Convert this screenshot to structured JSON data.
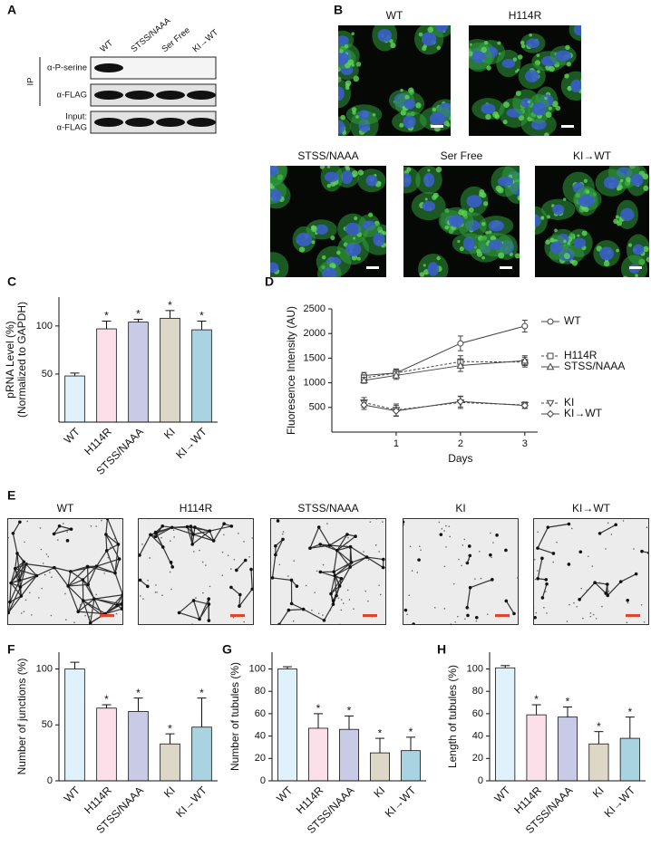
{
  "panel_labels": [
    "A",
    "B",
    "C",
    "D",
    "E",
    "F",
    "G",
    "H"
  ],
  "blot": {
    "lanes": [
      "WT",
      "STSS/NAAA",
      "Ser Free",
      "KI→WT"
    ],
    "group_label": "IP",
    "rows": [
      [
        "α-P-serine"
      ],
      [
        "α-FLAG"
      ],
      [
        "Input:",
        "α-FLAG"
      ]
    ]
  },
  "fluorescence_images": {
    "titles": [
      "WT",
      "H114R",
      "STSS/NAAA",
      "Ser Free",
      "KI→WT"
    ]
  },
  "tube_images": {
    "titles": [
      "WT",
      "H114R",
      "STSS/NAAA",
      "KI",
      "KI→WT"
    ]
  },
  "chart_data": [
    {
      "type": "bar",
      "ylabel": [
        "pRNA Level (%)",
        "(Normalized to GAPDH)"
      ],
      "categories": [
        "WT",
        "H114R",
        "STSS/NAAA",
        "KI",
        "KI→WT"
      ],
      "values": [
        48,
        97,
        104,
        108,
        96
      ],
      "errors": [
        3,
        8,
        3,
        8,
        9
      ],
      "significance": [
        null,
        "*",
        "*",
        "*",
        "*"
      ],
      "colors": [
        "#dff2fb",
        "#fbe0ea",
        "#c9cbe6",
        "#ddd7c8",
        "#a9d3e0"
      ],
      "ylim": [
        0,
        130
      ],
      "yticks": [
        50,
        100
      ]
    },
    {
      "type": "line",
      "ylabel": [
        "Fluoresence Intensity (AU)"
      ],
      "xlabel": "Days",
      "x": [
        0.5,
        1,
        2,
        3
      ],
      "xlim": [
        0,
        3.2
      ],
      "xticks": [
        1,
        2,
        3
      ],
      "ylim": [
        0,
        2500
      ],
      "yticks": [
        500,
        1000,
        1500,
        2000,
        2500
      ],
      "series": [
        {
          "name": "WT",
          "color": "#444444",
          "marker": "circle",
          "dashed": false,
          "values": [
            1150,
            1200,
            1800,
            2150
          ],
          "errors": [
            60,
            80,
            150,
            120
          ]
        },
        {
          "name": "H114R",
          "color": "#444444",
          "marker": "square",
          "dashed": true,
          "values": [
            1100,
            1200,
            1430,
            1420
          ],
          "errors": [
            60,
            80,
            120,
            100
          ]
        },
        {
          "name": "STSS/NAAA",
          "color": "#444444",
          "marker": "triangle-up",
          "dashed": false,
          "values": [
            1050,
            1150,
            1350,
            1450
          ],
          "errors": [
            60,
            80,
            120,
            100
          ]
        },
        {
          "name": "KI",
          "color": "#444444",
          "marker": "triangle-down",
          "dashed": true,
          "values": [
            600,
            450,
            600,
            550
          ],
          "errors": [
            100,
            120,
            120,
            60
          ]
        },
        {
          "name": "KI→WT",
          "color": "#444444",
          "marker": "diamond",
          "dashed": false,
          "values": [
            550,
            430,
            620,
            540
          ],
          "errors": [
            90,
            110,
            110,
            60
          ]
        }
      ]
    },
    {
      "type": "bar",
      "ylabel": [
        "Number of junctions (%)"
      ],
      "categories": [
        "WT",
        "H114R",
        "STSS/NAAA",
        "KI",
        "KI→WT"
      ],
      "values": [
        100,
        65,
        62,
        33,
        48
      ],
      "errors": [
        6,
        3,
        12,
        9,
        26
      ],
      "significance": [
        null,
        "*",
        "*",
        "*",
        "*"
      ],
      "colors": [
        "#dff2fb",
        "#fbe0ea",
        "#c9cbe6",
        "#ddd7c8",
        "#a9d3e0"
      ],
      "ylim": [
        0,
        115
      ],
      "yticks": [
        0,
        50,
        100
      ]
    },
    {
      "type": "bar",
      "ylabel": [
        "Number of tubules (%)"
      ],
      "categories": [
        "WT",
        "H114R",
        "STSS/NAAA",
        "KI",
        "KI→WT"
      ],
      "values": [
        100,
        47,
        46,
        25,
        27
      ],
      "errors": [
        2,
        13,
        12,
        13,
        12
      ],
      "significance": [
        null,
        "*",
        "*",
        "*",
        "*"
      ],
      "colors": [
        "#dff2fb",
        "#fbe0ea",
        "#c9cbe6",
        "#ddd7c8",
        "#a9d3e0"
      ],
      "ylim": [
        0,
        115
      ],
      "yticks": [
        0,
        20,
        40,
        60,
        80,
        100
      ]
    },
    {
      "type": "bar",
      "ylabel": [
        "Length of tubules (%)"
      ],
      "categories": [
        "WT",
        "H114R",
        "STSS/NAAA",
        "KI",
        "KI→WT"
      ],
      "values": [
        101,
        59,
        57,
        33,
        38
      ],
      "errors": [
        2,
        9,
        9,
        11,
        19
      ],
      "significance": [
        null,
        "*",
        "*",
        "*",
        "*"
      ],
      "colors": [
        "#dff2fb",
        "#fbe0ea",
        "#c9cbe6",
        "#ddd7c8",
        "#a9d3e0"
      ],
      "ylim": [
        0,
        115
      ],
      "yticks": [
        0,
        20,
        40,
        60,
        80,
        100
      ]
    }
  ]
}
